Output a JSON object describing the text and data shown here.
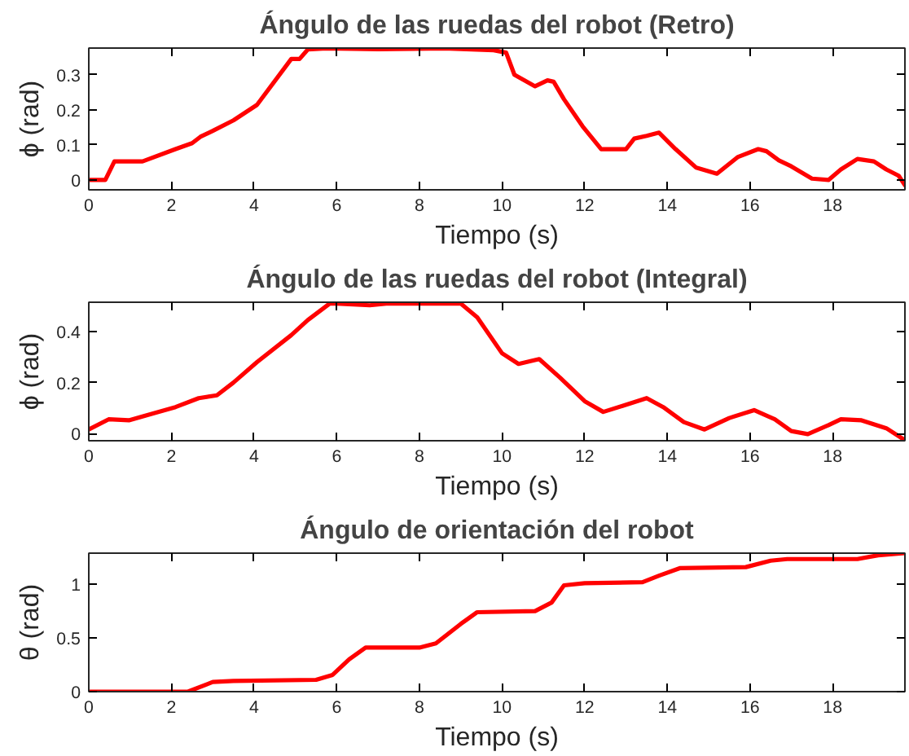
{
  "chart_data": [
    {
      "type": "line",
      "title": "Ángulo de las ruedas del robot (Retro)",
      "xlabel": "Tiempo (s)",
      "ylabel": "ϕ (rad)",
      "xlim": [
        0,
        19.75
      ],
      "ylim": [
        -0.028,
        0.376
      ],
      "xticks": [
        0,
        2,
        4,
        6,
        8,
        10,
        12,
        14,
        16,
        18
      ],
      "yticks": [
        0,
        0.1,
        0.2,
        0.3
      ],
      "grid": false,
      "line_style": "solid",
      "series": [
        {
          "color": "#ff0000",
          "x": [
            0,
            0.4,
            0.62,
            1.3,
            2.1,
            2.5,
            2.7,
            3.0,
            3.5,
            4.07,
            4.9,
            5.1,
            5.3,
            5.75,
            7.0,
            8.6,
            9.8,
            10.1,
            10.3,
            10.8,
            11.1,
            11.25,
            11.5,
            11.95,
            12.4,
            13.0,
            13.2,
            13.5,
            13.8,
            14.2,
            14.7,
            15.2,
            15.7,
            16.2,
            16.4,
            16.7,
            17.0,
            17.5,
            17.9,
            18.2,
            18.6,
            19.0,
            19.3,
            19.6,
            19.75
          ],
          "values": [
            0,
            0,
            0.053,
            0.053,
            0.088,
            0.105,
            0.123,
            0.14,
            0.17,
            0.214,
            0.345,
            0.345,
            0.372,
            0.375,
            0.373,
            0.375,
            0.37,
            0.363,
            0.3,
            0.267,
            0.284,
            0.28,
            0.23,
            0.153,
            0.088,
            0.088,
            0.118,
            0.126,
            0.135,
            0.088,
            0.035,
            0.018,
            0.065,
            0.088,
            0.082,
            0.056,
            0.039,
            0.004,
            0,
            0.03,
            0.06,
            0.053,
            0.03,
            0.012,
            -0.015
          ]
        }
      ]
    },
    {
      "type": "line",
      "title": "Ángulo de las ruedas del robot (Integral)",
      "xlabel": "Tiempo (s)",
      "ylabel": "ϕ (rad)",
      "xlim": [
        0,
        19.75
      ],
      "ylim": [
        -0.028,
        0.515
      ],
      "xticks": [
        0,
        2,
        4,
        6,
        8,
        10,
        12,
        14,
        16,
        18
      ],
      "yticks": [
        0,
        0.2,
        0.4
      ],
      "grid": false,
      "line_style": "solid",
      "series": [
        {
          "color": "#ff0000",
          "x": [
            0,
            0.48,
            0.97,
            2.1,
            2.66,
            3.1,
            3.5,
            4.07,
            4.9,
            5.3,
            5.83,
            6.0,
            6.8,
            7.2,
            9.0,
            9.4,
            10.0,
            10.4,
            10.9,
            11.4,
            12.0,
            12.45,
            12.9,
            13.5,
            13.9,
            14.4,
            14.9,
            15.5,
            16.1,
            16.6,
            17.0,
            17.4,
            17.9,
            18.2,
            18.7,
            19.3,
            19.75
          ],
          "values": [
            0.016,
            0.056,
            0.052,
            0.104,
            0.139,
            0.15,
            0.2,
            0.28,
            0.386,
            0.445,
            0.51,
            0.51,
            0.503,
            0.51,
            0.51,
            0.456,
            0.315,
            0.273,
            0.292,
            0.22,
            0.127,
            0.085,
            0.108,
            0.139,
            0.104,
            0.045,
            0.016,
            0.061,
            0.092,
            0.056,
            0.01,
            -0.002,
            0.033,
            0.056,
            0.052,
            0.021,
            -0.026
          ]
        }
      ]
    },
    {
      "type": "line",
      "title": "Ángulo de orientación del robot",
      "xlabel": "Tiempo (s)",
      "ylabel": "θ (rad)",
      "xlim": [
        0,
        19.75
      ],
      "ylim": [
        0,
        1.29
      ],
      "xticks": [
        0,
        2,
        4,
        6,
        8,
        10,
        12,
        14,
        16,
        18
      ],
      "yticks": [
        0,
        0.5,
        1
      ],
      "grid": false,
      "line_style": "solid",
      "series": [
        {
          "color": "#ff0000",
          "x": [
            0,
            2.2,
            2.4,
            3.0,
            3.5,
            5.5,
            5.9,
            6.3,
            6.7,
            8.0,
            8.4,
            9.0,
            9.4,
            10.8,
            11.2,
            11.5,
            12.0,
            13.4,
            13.8,
            14.3,
            15.9,
            16.5,
            16.9,
            18.6,
            19.1,
            19.75
          ],
          "values": [
            0,
            0,
            0,
            0.09,
            0.1,
            0.11,
            0.156,
            0.3,
            0.41,
            0.41,
            0.45,
            0.63,
            0.74,
            0.75,
            0.83,
            0.99,
            1.01,
            1.02,
            1.08,
            1.15,
            1.16,
            1.22,
            1.235,
            1.235,
            1.27,
            1.29
          ]
        }
      ]
    }
  ]
}
